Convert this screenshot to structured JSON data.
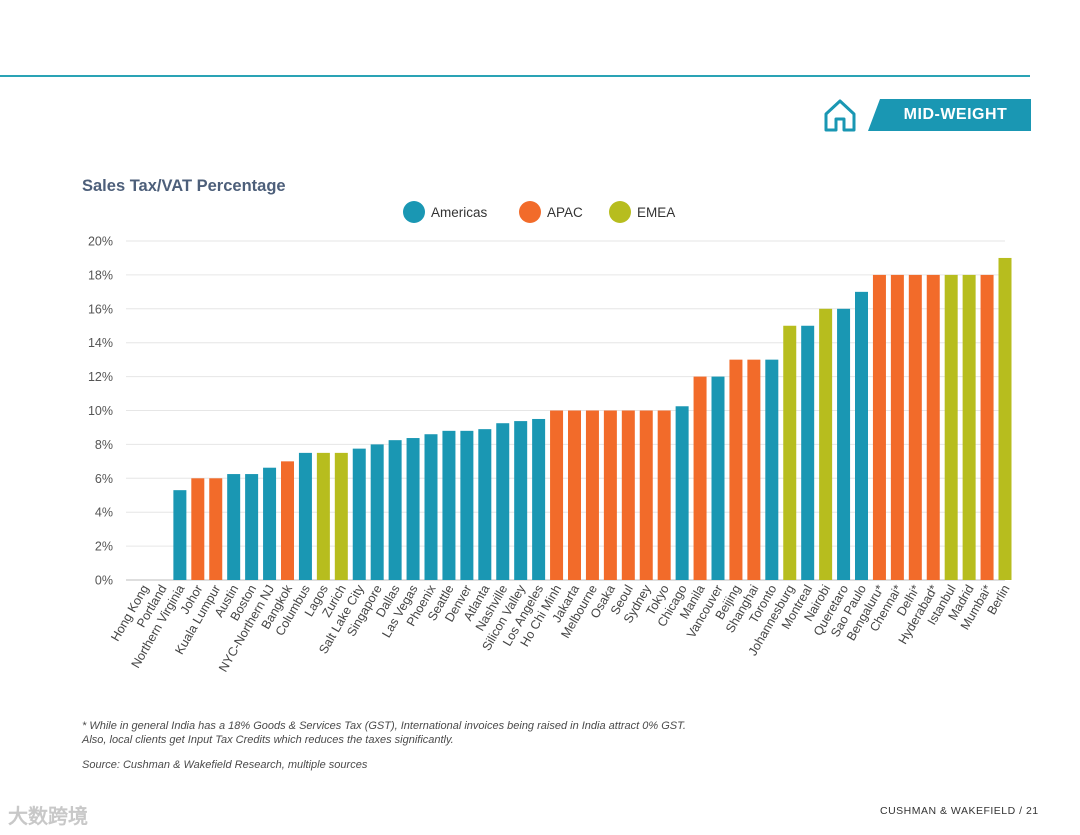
{
  "header": {
    "badge": "MID-WEIGHT",
    "icon": "home-icon",
    "rule_color": "#2aa3b5",
    "badge_color": "#1a97b3"
  },
  "chart_data": {
    "type": "bar",
    "title": "Sales Tax/VAT Percentage",
    "xlabel": "",
    "ylabel": "",
    "ylim": [
      0,
      20
    ],
    "y_ticks": [
      "0%",
      "2%",
      "4%",
      "6%",
      "8%",
      "10%",
      "12%",
      "14%",
      "16%",
      "18%",
      "20%"
    ],
    "grid": true,
    "legend_position": "top-center",
    "groups": [
      {
        "name": "Americas",
        "color": "#1a97b3"
      },
      {
        "name": "APAC",
        "color": "#f26b2a"
      },
      {
        "name": "EMEA",
        "color": "#b7bd1e"
      }
    ],
    "categories": [
      "Hong Kong",
      "Portland",
      "Northern Virginia",
      "Johor",
      "Kuala Lumpur",
      "Austin",
      "Boston",
      "NYC-Northern NJ",
      "Bangkok",
      "Columbus",
      "Lagos",
      "Zurich",
      "Salt Lake City",
      "Singapore",
      "Dallas",
      "Las Vegas",
      "Phoenix",
      "Seattle",
      "Denver",
      "Atlanta",
      "Nashville",
      "Silicon Valley",
      "Los Angeles",
      "Ho Chi Minh",
      "Jakarta",
      "Melbourne",
      "Osaka",
      "Seoul",
      "Sydney",
      "Tokyo",
      "Chicago",
      "Manila",
      "Vancouver",
      "Beijing",
      "Shanghai",
      "Toronto",
      "Johannesburg",
      "Montreal",
      "Nairobi",
      "Queretaro",
      "Sao Paulo",
      "Bengaluru*",
      "Chennai*",
      "Delhi*",
      "Hyderabad*",
      "Istanbul",
      "Madrid",
      "Mumbai*",
      "Berlin"
    ],
    "values": [
      0,
      0,
      5.3,
      6,
      6,
      6.25,
      6.25,
      6.625,
      7,
      7.5,
      7.5,
      7.5,
      7.75,
      8,
      8.25,
      8.375,
      8.6,
      8.8,
      8.8,
      8.9,
      9.25,
      9.375,
      9.5,
      10,
      10,
      10,
      10,
      10,
      10,
      10,
      10.25,
      12,
      12,
      13,
      13,
      13,
      15,
      15,
      16,
      16,
      17,
      18,
      18,
      18,
      18,
      18,
      18,
      18,
      19
    ],
    "bar_group": [
      "APAC",
      "Americas",
      "Americas",
      "APAC",
      "APAC",
      "Americas",
      "Americas",
      "Americas",
      "APAC",
      "Americas",
      "EMEA",
      "EMEA",
      "Americas",
      "Americas",
      "Americas",
      "Americas",
      "Americas",
      "Americas",
      "Americas",
      "Americas",
      "Americas",
      "Americas",
      "Americas",
      "APAC",
      "APAC",
      "APAC",
      "APAC",
      "APAC",
      "APAC",
      "APAC",
      "Americas",
      "APAC",
      "Americas",
      "APAC",
      "APAC",
      "Americas",
      "EMEA",
      "Americas",
      "EMEA",
      "Americas",
      "Americas",
      "APAC",
      "APAC",
      "APAC",
      "APAC",
      "EMEA",
      "EMEA",
      "APAC",
      "EMEA"
    ]
  },
  "notes": {
    "footnote_line1": "* While in general India has a 18% Goods & Services Tax (GST), International invoices being raised in India attract 0% GST.",
    "footnote_line2": "Also, local clients get Input Tax Credits which reduces the taxes significantly.",
    "source": "Source: Cushman & Wakefield Research, multiple sources"
  },
  "footer": {
    "watermark": "大数跨境",
    "page": "CUSHMAN & WAKEFIELD / 21"
  }
}
